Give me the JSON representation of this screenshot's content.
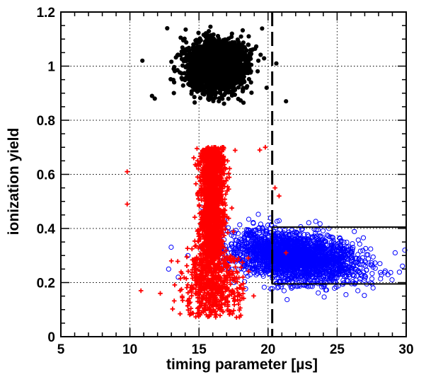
{
  "chart_data": {
    "type": "scatter",
    "title": "",
    "xlabel": "timing parameter [µs]",
    "ylabel": "ionization yield",
    "xlim": [
      5,
      30
    ],
    "ylim": [
      0,
      1.2
    ],
    "x_ticks": [
      5,
      10,
      15,
      20,
      25,
      30
    ],
    "x_tick_labels": [
      "5",
      "10",
      "15",
      "20",
      "25",
      "30"
    ],
    "y_ticks": [
      0,
      0.2,
      0.4,
      0.6,
      0.8,
      1,
      1.2
    ],
    "y_tick_labels": [
      "0",
      "0.2",
      "0.4",
      "0.6",
      "0.8",
      "1",
      "1.2"
    ],
    "grid": true,
    "legend": "none",
    "cut_line": {
      "x": 20.3,
      "style": "dashed",
      "color": "#000000"
    },
    "signal_box": {
      "x_range": [
        20.3,
        30
      ],
      "y_range": [
        0.195,
        0.405
      ],
      "color": "#000000"
    },
    "series": [
      {
        "marker": "filled-circle",
        "color": "#000000",
        "center": [
          16.3,
          1.0
        ],
        "spread": [
          1.0,
          0.045
        ],
        "count": 2600,
        "sample_points": [
          [
            10.9,
            1.02
          ],
          [
            11.6,
            0.89
          ],
          [
            11.8,
            0.88
          ],
          [
            12.7,
            1.14
          ],
          [
            19.3,
            1.02
          ],
          [
            20.6,
            1.01
          ],
          [
            21.3,
            0.87
          ],
          [
            19.9,
            0.92
          ],
          [
            13.2,
            0.94
          ],
          [
            18.6,
            1.11
          ]
        ]
      },
      {
        "marker": "plus",
        "color": "#ff0000",
        "x_range": [
          14.9,
          17.0
        ],
        "y_range": [
          0.07,
          0.7
        ],
        "count": 2200,
        "sample_points": [
          [
            9.8,
            0.61
          ],
          [
            9.8,
            0.49
          ],
          [
            10.8,
            0.17
          ],
          [
            12.2,
            0.16
          ],
          [
            19.4,
            0.69
          ],
          [
            19.8,
            0.7
          ],
          [
            20.5,
            0.55
          ],
          [
            20.8,
            0.52
          ],
          [
            21.3,
            0.31
          ],
          [
            13.0,
            0.28
          ]
        ]
      },
      {
        "marker": "open-circle",
        "color": "#0000ff",
        "center": [
          22.0,
          0.295
        ],
        "spread": [
          2.3,
          0.045
        ],
        "count": 2400,
        "sample_points": [
          [
            12.8,
            0.25
          ],
          [
            13.5,
            0.22
          ],
          [
            29.9,
            0.32
          ],
          [
            29.2,
            0.31
          ],
          [
            27.6,
            0.18
          ],
          [
            26.5,
            0.17
          ],
          [
            24.4,
            0.4
          ],
          [
            21.0,
            0.38
          ],
          [
            14.2,
            0.3
          ],
          [
            28.1,
            0.27
          ]
        ]
      }
    ]
  }
}
